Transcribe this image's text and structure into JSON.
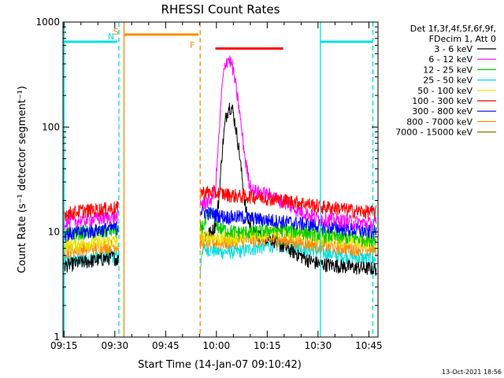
{
  "title": "RHESSI Count Rates",
  "footer_timestamp": "13-Oct-2021 18:56",
  "chart_data": {
    "type": "line",
    "y_scale": "log",
    "ylim": [
      1,
      1000
    ],
    "xlim_minutes": [
      4.0,
      97.0
    ],
    "xlabel": "Start Time (14-Jan-07 09:10:42)",
    "ylabel": "Count Rate (s⁻¹ detector segment⁻¹)",
    "x_ticks": [
      {
        "label": "09:15",
        "minute": 4.3
      },
      {
        "label": "09:30",
        "minute": 19.3
      },
      {
        "label": "09:45",
        "minute": 34.3
      },
      {
        "label": "10:00",
        "minute": 49.3
      },
      {
        "label": "10:15",
        "minute": 64.3
      },
      {
        "label": "10:30",
        "minute": 79.3
      },
      {
        "label": "10:45",
        "minute": 94.3
      }
    ],
    "y_ticks": [
      {
        "label": "1",
        "value": 1
      },
      {
        "label": "10",
        "value": 10
      },
      {
        "label": "100",
        "value": 100
      },
      {
        "label": "1000",
        "value": 1000
      }
    ],
    "legend_header": [
      "Det 1f,3f,4f,5f,6f,9f,",
      "FDecim 1, Att 0"
    ],
    "legend_placement": "right",
    "series": [
      {
        "name": "3 - 6 keV",
        "color": "#000000",
        "points": [
          [
            4,
            4.8
          ],
          [
            10,
            5.2
          ],
          [
            15,
            5.5
          ],
          [
            19,
            5.8
          ],
          [
            20.5,
            5.4
          ],
          [
            21,
            2.0
          ],
          [
            44.5,
            8.6
          ],
          [
            46,
            9.5
          ],
          [
            48,
            10
          ],
          [
            49,
            12
          ],
          [
            50,
            20
          ],
          [
            51,
            60
          ],
          [
            52,
            120
          ],
          [
            53,
            160
          ],
          [
            54,
            150
          ],
          [
            55,
            100
          ],
          [
            56,
            60
          ],
          [
            57,
            30
          ],
          [
            58,
            16
          ],
          [
            59,
            12
          ],
          [
            60,
            10
          ],
          [
            62,
            9.5
          ],
          [
            64,
            9.0
          ],
          [
            66,
            8.5
          ],
          [
            68,
            7.6
          ],
          [
            70,
            7
          ],
          [
            72,
            6.5
          ],
          [
            74,
            6
          ],
          [
            76,
            5.5
          ],
          [
            78,
            5.2
          ],
          [
            80,
            5
          ],
          [
            85,
            4.8
          ],
          [
            90,
            4.6
          ],
          [
            96,
            4.5
          ]
        ]
      },
      {
        "name": "6 - 12 keV",
        "color": "#ff00ff",
        "points": [
          [
            4,
            12.5
          ],
          [
            10,
            13
          ],
          [
            15,
            13.5
          ],
          [
            19,
            14
          ],
          [
            20.5,
            14
          ],
          [
            44.5,
            19
          ],
          [
            46,
            19
          ],
          [
            48,
            21
          ],
          [
            49,
            25
          ],
          [
            50,
            80
          ],
          [
            51,
            250
          ],
          [
            52,
            420
          ],
          [
            53,
            450
          ],
          [
            54,
            380
          ],
          [
            55,
            250
          ],
          [
            56,
            150
          ],
          [
            57,
            80
          ],
          [
            58,
            45
          ],
          [
            59,
            30
          ],
          [
            60,
            25
          ],
          [
            62,
            24
          ],
          [
            64,
            23
          ],
          [
            66,
            22
          ],
          [
            68,
            20
          ],
          [
            70,
            19
          ],
          [
            72,
            17
          ],
          [
            74,
            16
          ],
          [
            76,
            15
          ],
          [
            78,
            14
          ],
          [
            80,
            13.5
          ],
          [
            85,
            13
          ],
          [
            90,
            12.5
          ],
          [
            96,
            12
          ]
        ]
      },
      {
        "name": "12 - 25 keV",
        "color": "#00cc00",
        "points": [
          [
            4,
            9.5
          ],
          [
            10,
            10
          ],
          [
            15,
            10
          ],
          [
            19,
            10.5
          ],
          [
            20.5,
            10
          ],
          [
            44.5,
            11
          ],
          [
            46,
            12
          ],
          [
            47,
            14
          ],
          [
            48,
            16
          ],
          [
            49,
            13
          ],
          [
            50,
            11
          ],
          [
            52,
            10.5
          ],
          [
            55,
            10
          ],
          [
            60,
            10
          ],
          [
            65,
            10.5
          ],
          [
            70,
            10.5
          ],
          [
            75,
            10
          ],
          [
            80,
            9.5
          ],
          [
            85,
            9
          ],
          [
            90,
            8.8
          ],
          [
            96,
            8.5
          ]
        ]
      },
      {
        "name": "25 - 50 keV",
        "color": "#00e0e0",
        "points": [
          [
            4,
            5.3
          ],
          [
            10,
            5.5
          ],
          [
            15,
            5.8
          ],
          [
            19,
            6
          ],
          [
            20.5,
            6
          ],
          [
            44.5,
            3.8
          ],
          [
            45,
            7
          ],
          [
            48,
            6.8
          ],
          [
            50,
            6.5
          ],
          [
            55,
            6.5
          ],
          [
            60,
            7
          ],
          [
            65,
            7.5
          ],
          [
            70,
            7.5
          ],
          [
            75,
            7
          ],
          [
            80,
            6.5
          ],
          [
            85,
            6
          ],
          [
            90,
            5.8
          ],
          [
            96,
            5.5
          ]
        ]
      },
      {
        "name": "50 - 100 keV",
        "color": "#e6e600",
        "points": [
          [
            4,
            7.5
          ],
          [
            10,
            7.8
          ],
          [
            15,
            8
          ],
          [
            19,
            8.2
          ],
          [
            20.5,
            8
          ],
          [
            44.5,
            9
          ],
          [
            48,
            9
          ],
          [
            52,
            8.8
          ],
          [
            56,
            9
          ],
          [
            60,
            9.5
          ],
          [
            65,
            10
          ],
          [
            70,
            10
          ],
          [
            75,
            9.5
          ],
          [
            80,
            9
          ],
          [
            85,
            8.5
          ],
          [
            90,
            8.2
          ],
          [
            96,
            8
          ]
        ]
      },
      {
        "name": "100 - 300 keV",
        "color": "#ff0000",
        "points": [
          [
            4,
            15
          ],
          [
            10,
            16
          ],
          [
            15,
            16.5
          ],
          [
            19,
            17
          ],
          [
            20.5,
            17
          ],
          [
            44.5,
            24
          ],
          [
            48,
            24
          ],
          [
            52,
            23
          ],
          [
            56,
            22
          ],
          [
            60,
            22
          ],
          [
            65,
            21
          ],
          [
            70,
            20
          ],
          [
            75,
            19
          ],
          [
            80,
            17.5
          ],
          [
            85,
            17
          ],
          [
            90,
            16
          ],
          [
            96,
            15.5
          ]
        ]
      },
      {
        "name": "300 - 800 keV",
        "color": "#0000ff",
        "points": [
          [
            4,
            9.5
          ],
          [
            10,
            10
          ],
          [
            15,
            10.5
          ],
          [
            19,
            11
          ],
          [
            20.5,
            11
          ],
          [
            44.5,
            16
          ],
          [
            48,
            15
          ],
          [
            52,
            14
          ],
          [
            56,
            14
          ],
          [
            60,
            13.5
          ],
          [
            65,
            13
          ],
          [
            70,
            12.5
          ],
          [
            75,
            12
          ],
          [
            80,
            11.5
          ],
          [
            85,
            11
          ],
          [
            90,
            10.5
          ],
          [
            96,
            10
          ]
        ]
      },
      {
        "name": "800 - 7000 keV",
        "color": "#ff8c00",
        "points": [
          [
            4,
            6.5
          ],
          [
            10,
            7
          ],
          [
            15,
            7.2
          ],
          [
            19,
            7.5
          ],
          [
            20.5,
            7.3
          ],
          [
            44.5,
            8
          ],
          [
            48,
            8
          ],
          [
            52,
            8
          ],
          [
            56,
            8.2
          ],
          [
            60,
            8.5
          ],
          [
            65,
            8.5
          ],
          [
            70,
            8.3
          ],
          [
            75,
            8
          ],
          [
            80,
            7.5
          ],
          [
            85,
            7.2
          ],
          [
            90,
            7
          ],
          [
            96,
            6.8
          ]
        ]
      },
      {
        "name": "7000 - 15000 keV",
        "color": "#808000",
        "points": []
      }
    ],
    "markers": [
      {
        "type": "vline",
        "minute": 4.3,
        "color": "#00e0e0",
        "style": "solid",
        "label": ""
      },
      {
        "type": "vline",
        "minute": 20.5,
        "color": "#00e0e0",
        "style": "dashed",
        "label": "N"
      },
      {
        "type": "vline",
        "minute": 22.0,
        "color": "#ff8c00",
        "style": "solid",
        "label": "S"
      },
      {
        "type": "vline",
        "minute": 44.5,
        "color": "#ff8c00",
        "style": "dashed",
        "label": "F"
      },
      {
        "type": "vline",
        "minute": 80.0,
        "color": "#00e0e0",
        "style": "solid",
        "label": ""
      },
      {
        "type": "vline",
        "minute": 95.5,
        "color": "#00e0e0",
        "style": "dashed",
        "label": ""
      }
    ],
    "bars": [
      {
        "from": 4.0,
        "to": 20.0,
        "value": 650,
        "color": "#00e0e0"
      },
      {
        "from": 80.0,
        "to": 95.5,
        "value": 650,
        "color": "#00e0e0"
      },
      {
        "from": 22.0,
        "to": 44.0,
        "value": 760,
        "color": "#ff8c00"
      },
      {
        "from": 49.0,
        "to": 69.0,
        "value": 560,
        "color": "#ff0000"
      }
    ]
  }
}
